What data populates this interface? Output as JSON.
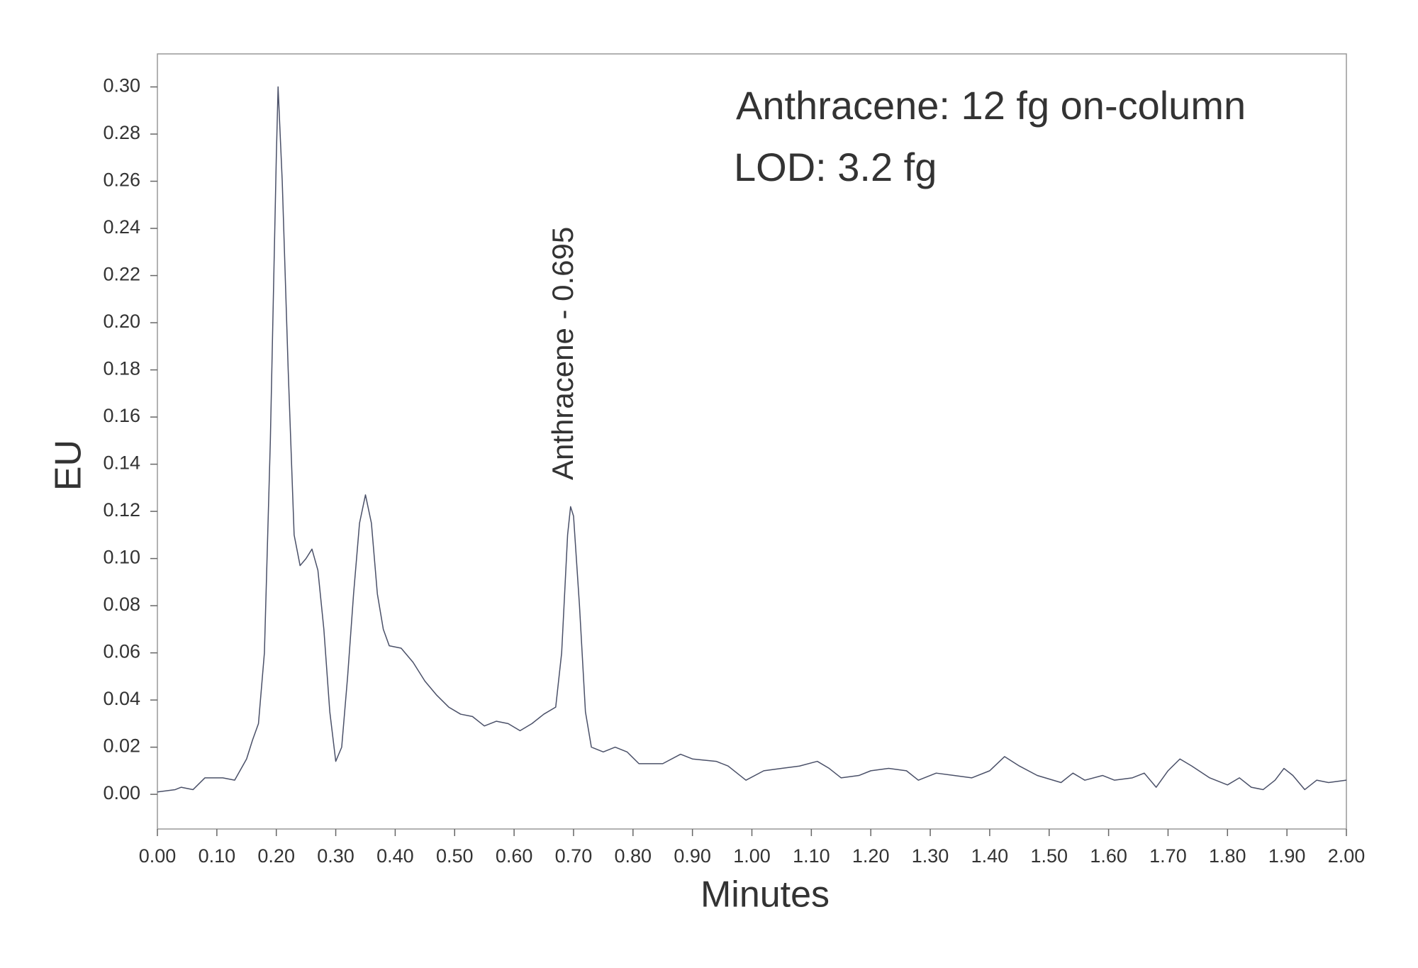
{
  "chart_data": {
    "type": "line",
    "annotations": [
      "Anthracene: 12 fg on-column",
      "LOD: 3.2 fg"
    ],
    "peak_label": "Anthracene - 0.695",
    "y_label": "EU",
    "x_label": "Minutes",
    "xlim": [
      0,
      2
    ],
    "ylim": [
      -0.0147,
      0.314
    ],
    "xticks": [
      {
        "value": 0,
        "label": "0.00"
      },
      {
        "value": 0.1,
        "label": "0.10"
      },
      {
        "value": 0.2,
        "label": "0.20"
      },
      {
        "value": 0.3,
        "label": "0.30"
      },
      {
        "value": 0.4,
        "label": "0.40"
      },
      {
        "value": 0.5,
        "label": "0.50"
      },
      {
        "value": 0.6,
        "label": "0.60"
      },
      {
        "value": 0.7,
        "label": "0.70"
      },
      {
        "value": 0.8,
        "label": "0.80"
      },
      {
        "value": 0.9,
        "label": "0.90"
      },
      {
        "value": 1,
        "label": "1.00"
      },
      {
        "value": 1.1,
        "label": "1.10"
      },
      {
        "value": 1.2,
        "label": "1.20"
      },
      {
        "value": 1.3,
        "label": "1.30"
      },
      {
        "value": 1.4,
        "label": "1.40"
      },
      {
        "value": 1.5,
        "label": "1.50"
      },
      {
        "value": 1.6,
        "label": "1.60"
      },
      {
        "value": 1.7,
        "label": "1.70"
      },
      {
        "value": 1.8,
        "label": "1.80"
      },
      {
        "value": 1.9,
        "label": "1.90"
      },
      {
        "value": 2,
        "label": "2.00"
      }
    ],
    "yticks": [
      {
        "value": 0,
        "label": "0.00"
      },
      {
        "value": 0.02,
        "label": "0.02"
      },
      {
        "value": 0.04,
        "label": "0.04"
      },
      {
        "value": 0.06,
        "label": "0.06"
      },
      {
        "value": 0.08,
        "label": "0.08"
      },
      {
        "value": 0.1,
        "label": "0.10"
      },
      {
        "value": 0.12,
        "label": "0.12"
      },
      {
        "value": 0.14,
        "label": "0.14"
      },
      {
        "value": 0.16,
        "label": "0.16"
      },
      {
        "value": 0.18,
        "label": "0.18"
      },
      {
        "value": 0.2,
        "label": "0.20"
      },
      {
        "value": 0.22,
        "label": "0.22"
      },
      {
        "value": 0.24,
        "label": "0.24"
      },
      {
        "value": 0.26,
        "label": "0.26"
      },
      {
        "value": 0.28,
        "label": "0.28"
      },
      {
        "value": 0.3,
        "label": "0.30"
      }
    ],
    "x": [
      0,
      0.03,
      0.04,
      0.06,
      0.08,
      0.11,
      0.13,
      0.15,
      0.16,
      0.17,
      0.18,
      0.19,
      0.2,
      0.203,
      0.21,
      0.22,
      0.23,
      0.24,
      0.25,
      0.26,
      0.27,
      0.28,
      0.29,
      0.3,
      0.31,
      0.32,
      0.33,
      0.34,
      0.35,
      0.36,
      0.37,
      0.38,
      0.39,
      0.41,
      0.43,
      0.45,
      0.47,
      0.49,
      0.51,
      0.53,
      0.55,
      0.57,
      0.59,
      0.61,
      0.63,
      0.65,
      0.67,
      0.68,
      0.69,
      0.695,
      0.7,
      0.71,
      0.72,
      0.73,
      0.75,
      0.77,
      0.79,
      0.81,
      0.85,
      0.88,
      0.9,
      0.94,
      0.96,
      0.99,
      1.02,
      1.05,
      1.08,
      1.11,
      1.13,
      1.15,
      1.18,
      1.2,
      1.23,
      1.26,
      1.28,
      1.31,
      1.34,
      1.37,
      1.4,
      1.425,
      1.45,
      1.48,
      1.52,
      1.54,
      1.56,
      1.59,
      1.61,
      1.64,
      1.66,
      1.68,
      1.7,
      1.72,
      1.74,
      1.77,
      1.8,
      1.82,
      1.84,
      1.86,
      1.88,
      1.895,
      1.91,
      1.93,
      1.95,
      1.97,
      2
    ],
    "series": [
      {
        "color": "#4a5068",
        "values": [
          0.001,
          0.002,
          0.003,
          0.002,
          0.007,
          0.007,
          0.006,
          0.015,
          0.023,
          0.03,
          0.06,
          0.15,
          0.27,
          0.3,
          0.26,
          0.18,
          0.11,
          0.097,
          0.1,
          0.104,
          0.095,
          0.07,
          0.035,
          0.014,
          0.02,
          0.05,
          0.085,
          0.115,
          0.127,
          0.115,
          0.085,
          0.07,
          0.063,
          0.062,
          0.056,
          0.048,
          0.042,
          0.037,
          0.034,
          0.033,
          0.029,
          0.031,
          0.03,
          0.027,
          0.03,
          0.034,
          0.037,
          0.06,
          0.11,
          0.122,
          0.118,
          0.08,
          0.035,
          0.02,
          0.018,
          0.02,
          0.018,
          0.013,
          0.013,
          0.017,
          0.015,
          0.014,
          0.012,
          0.006,
          0.01,
          0.011,
          0.012,
          0.014,
          0.011,
          0.007,
          0.008,
          0.01,
          0.011,
          0.01,
          0.006,
          0.009,
          0.008,
          0.007,
          0.01,
          0.016,
          0.012,
          0.008,
          0.005,
          0.009,
          0.006,
          0.008,
          0.006,
          0.007,
          0.009,
          0.003,
          0.01,
          0.015,
          0.012,
          0.007,
          0.004,
          0.007,
          0.003,
          0.002,
          0.006,
          0.011,
          0.008,
          0.002,
          0.006,
          0.005,
          0.006
        ]
      }
    ]
  }
}
